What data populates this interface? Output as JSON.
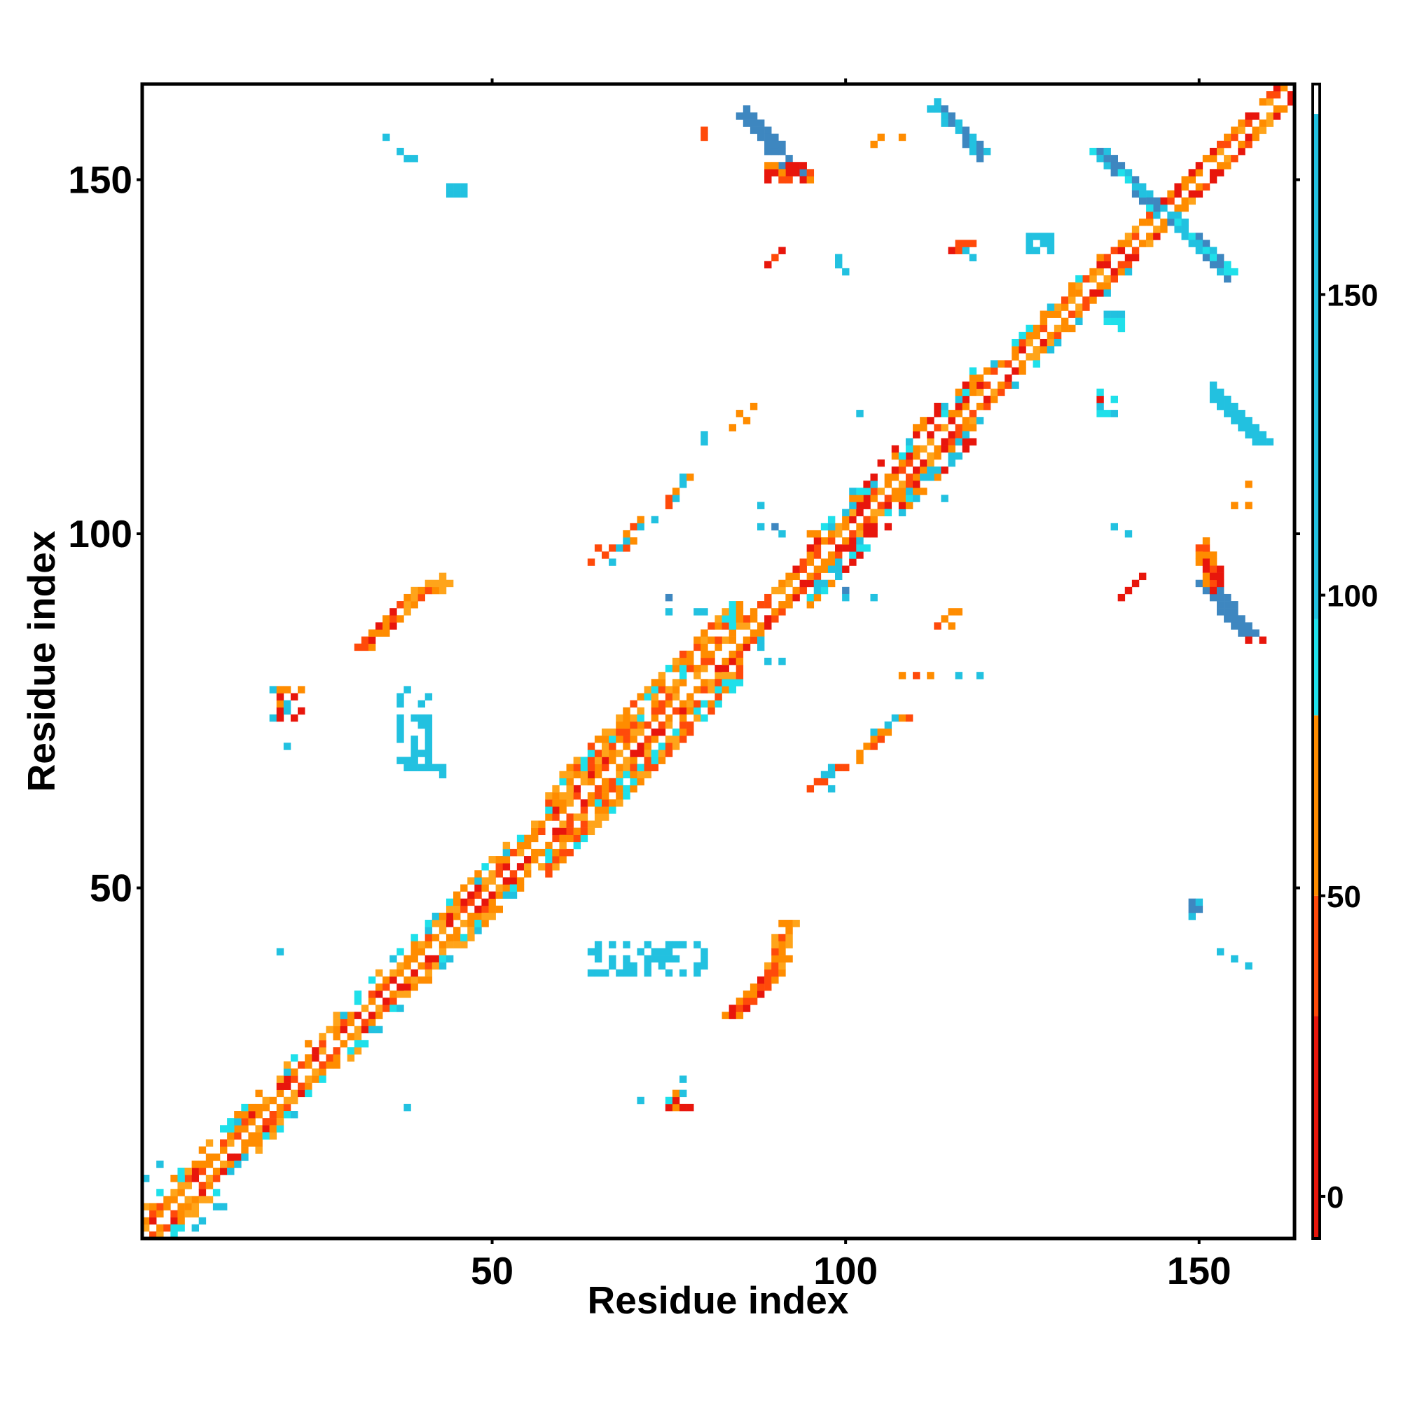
{
  "chart_data": {
    "type": "heatmap",
    "title": "",
    "xlabel": "Residue index",
    "ylabel": "Residue index",
    "xlim": [
      1,
      163
    ],
    "ylim": [
      1,
      163
    ],
    "x_ticks": [
      50,
      100,
      150
    ],
    "y_ticks": [
      50,
      100,
      150
    ],
    "grid": false,
    "colorbar": {
      "range": [
        -7,
        185
      ],
      "ticks": [
        0,
        50,
        100,
        150
      ],
      "bands": [
        {
          "from": -7,
          "to": 30,
          "color": "#e8160c"
        },
        {
          "from": 30,
          "to": 50,
          "color": "#ff4a0a"
        },
        {
          "from": 50,
          "to": 80,
          "color": "#ff8c00"
        },
        {
          "from": 80,
          "to": 96,
          "color": "#1fe0ea"
        },
        {
          "from": 96,
          "to": 180,
          "color": "#22c1e0"
        },
        {
          "from": 180,
          "to": 185,
          "color": "#ffffff"
        }
      ]
    },
    "palette": {
      "red": "#e8160c",
      "orange_red": "#ff4a0a",
      "orange": "#ff8c00",
      "light_orange": "#ffa41a",
      "cyan": "#1fe0ea",
      "light_blue": "#22c1e0",
      "steel_blue": "#3e87c0"
    },
    "regions": [
      {
        "kind": "diag",
        "from": 1,
        "to": 163,
        "offsets": [
          -2,
          -1,
          1,
          2
        ],
        "colors": [
          "red",
          "orange_red",
          "orange",
          "light_orange",
          "orange"
        ],
        "density": 0.9
      },
      {
        "kind": "diag",
        "from": 1,
        "to": 58,
        "offsets": [
          -4,
          -3,
          3,
          4
        ],
        "colors": [
          "orange",
          "cyan",
          "light_blue",
          "light_orange"
        ],
        "density": 0.55
      },
      {
        "kind": "diag",
        "from": 58,
        "to": 85,
        "offsets": [
          -6,
          -5,
          -4,
          -3,
          3,
          4,
          5,
          6
        ],
        "colors": [
          "orange",
          "orange_red",
          "cyan",
          "light_orange"
        ],
        "density": 0.8
      },
      {
        "kind": "diag",
        "from": 95,
        "to": 118,
        "offsets": [
          -5,
          -4,
          -3,
          3,
          4,
          5
        ],
        "colors": [
          "orange",
          "cyan",
          "red",
          "light_blue"
        ],
        "density": 0.6
      },
      {
        "kind": "diag",
        "from": 118,
        "to": 140,
        "offsets": [
          -3,
          3
        ],
        "colors": [
          "cyan",
          "orange",
          "light_blue"
        ],
        "density": 0.6
      },
      {
        "kind": "band",
        "from": [
          32,
          84
        ],
        "to": [
          38,
          90
        ],
        "width": 3,
        "colors": [
          "red",
          "orange_red",
          "orange"
        ],
        "density": 0.9
      },
      {
        "kind": "band",
        "from": [
          38,
          90
        ],
        "to": [
          44,
          94
        ],
        "width": 2,
        "colors": [
          "orange_red",
          "orange",
          "light_orange"
        ],
        "density": 0.8
      },
      {
        "kind": "band",
        "from": [
          84,
          32
        ],
        "to": [
          90,
          38
        ],
        "width": 3,
        "colors": [
          "red",
          "orange_red",
          "orange"
        ],
        "density": 0.9
      },
      {
        "kind": "band",
        "from": [
          90,
          38
        ],
        "to": [
          92,
          45
        ],
        "width": 2,
        "colors": [
          "orange_red",
          "orange",
          "light_orange"
        ],
        "density": 0.8
      },
      {
        "kind": "band",
        "from": [
          86,
          159
        ],
        "to": [
          93,
          151
        ],
        "width": 3,
        "colors": [
          "steel_blue"
        ],
        "density": 0.95
      },
      {
        "kind": "band",
        "from": [
          113,
          160
        ],
        "to": [
          119,
          154
        ],
        "width": 3,
        "colors": [
          "light_blue",
          "steel_blue"
        ],
        "density": 0.9
      },
      {
        "kind": "band",
        "from": [
          136,
          154
        ],
        "to": [
          154,
          137
        ],
        "width": 3,
        "colors": [
          "cyan",
          "light_blue",
          "steel_blue"
        ],
        "density": 0.9
      },
      {
        "kind": "band",
        "from": [
          151,
          93
        ],
        "to": [
          157,
          86
        ],
        "width": 3,
        "colors": [
          "steel_blue"
        ],
        "density": 0.95
      },
      {
        "kind": "band",
        "from": [
          152,
          120
        ],
        "to": [
          159,
          113
        ],
        "width": 3,
        "colors": [
          "light_blue"
        ],
        "density": 0.9
      },
      {
        "kind": "band",
        "from": [
          151,
          98
        ],
        "to": [
          152,
          93
        ],
        "width": 2,
        "colors": [
          "red",
          "orange_red",
          "orange"
        ],
        "density": 0.8
      },
      {
        "kind": "band",
        "from": [
          67,
          97
        ],
        "to": [
          78,
          108
        ],
        "width": 2,
        "colors": [
          "orange",
          "orange_red",
          "light_blue"
        ],
        "density": 0.35
      },
      {
        "kind": "band",
        "from": [
          96,
          64
        ],
        "to": [
          108,
          74
        ],
        "width": 2,
        "colors": [
          "orange",
          "orange_red",
          "light_blue"
        ],
        "density": 0.35
      },
      {
        "kind": "blob",
        "x": [
          37,
          42
        ],
        "y": [
          67,
          78
        ],
        "colors": [
          "light_blue"
        ],
        "density": 0.5
      },
      {
        "kind": "blob",
        "x": [
          64,
          80
        ],
        "y": [
          38,
          42
        ],
        "colors": [
          "light_blue"
        ],
        "density": 0.45
      },
      {
        "kind": "blob",
        "x": [
          19,
          23
        ],
        "y": [
          74,
          78
        ],
        "colors": [
          "light_blue",
          "red",
          "orange"
        ],
        "density": 0.6
      },
      {
        "kind": "blob",
        "x": [
          44,
          46
        ],
        "y": [
          148,
          149
        ],
        "colors": [
          "light_blue"
        ],
        "density": 0.8
      },
      {
        "kind": "blob",
        "x": [
          75,
          78
        ],
        "y": [
          19,
          21
        ],
        "colors": [
          "cyan",
          "light_blue",
          "red",
          "orange"
        ],
        "density": 0.7
      },
      {
        "kind": "blob",
        "x": [
          115,
          118
        ],
        "y": [
          139,
          141
        ],
        "colors": [
          "red",
          "orange_red",
          "light_blue"
        ],
        "density": 0.7
      },
      {
        "kind": "blob",
        "x": [
          126,
          129
        ],
        "y": [
          140,
          142
        ],
        "colors": [
          "light_blue"
        ],
        "density": 0.9
      },
      {
        "kind": "blob",
        "x": [
          137,
          139
        ],
        "y": [
          129,
          131
        ],
        "colors": [
          "light_blue",
          "cyan"
        ],
        "density": 0.9
      },
      {
        "kind": "blob",
        "x": [
          136,
          138
        ],
        "y": [
          117,
          120
        ],
        "colors": [
          "light_blue",
          "cyan",
          "red"
        ],
        "density": 0.8
      },
      {
        "kind": "blob",
        "x": [
          149,
          150
        ],
        "y": [
          46,
          48
        ],
        "colors": [
          "light_blue",
          "steel_blue"
        ],
        "density": 0.8
      },
      {
        "kind": "blob",
        "x": [
          89,
          95
        ],
        "y": [
          150,
          152
        ],
        "colors": [
          "red",
          "orange",
          "orange_red"
        ],
        "density": 0.7
      }
    ],
    "points": [
      {
        "x": 35,
        "y": 156,
        "c": "light_blue"
      },
      {
        "x": 37,
        "y": 154,
        "c": "light_blue"
      },
      {
        "x": 38,
        "y": 153,
        "c": "light_blue"
      },
      {
        "x": 39,
        "y": 153,
        "c": "light_blue"
      },
      {
        "x": 80,
        "y": 157,
        "c": "orange_red"
      },
      {
        "x": 80,
        "y": 156,
        "c": "orange_red"
      },
      {
        "x": 105,
        "y": 156,
        "c": "orange"
      },
      {
        "x": 108,
        "y": 156,
        "c": "orange"
      },
      {
        "x": 104,
        "y": 155,
        "c": "orange"
      },
      {
        "x": 89,
        "y": 138,
        "c": "red"
      },
      {
        "x": 90,
        "y": 139,
        "c": "orange_red"
      },
      {
        "x": 91,
        "y": 140,
        "c": "red"
      },
      {
        "x": 99,
        "y": 139,
        "c": "light_blue"
      },
      {
        "x": 99,
        "y": 138,
        "c": "light_blue"
      },
      {
        "x": 100,
        "y": 137,
        "c": "light_blue"
      },
      {
        "x": 85,
        "y": 117,
        "c": "orange"
      },
      {
        "x": 86,
        "y": 116,
        "c": "orange"
      },
      {
        "x": 87,
        "y": 118,
        "c": "orange"
      },
      {
        "x": 84,
        "y": 115,
        "c": "orange"
      },
      {
        "x": 80,
        "y": 114,
        "c": "light_blue"
      },
      {
        "x": 80,
        "y": 113,
        "c": "light_blue"
      },
      {
        "x": 102,
        "y": 117,
        "c": "light_blue"
      },
      {
        "x": 112,
        "y": 108,
        "c": "light_blue"
      },
      {
        "x": 114,
        "y": 105,
        "c": "light_blue"
      },
      {
        "x": 88,
        "y": 104,
        "c": "light_blue"
      },
      {
        "x": 88,
        "y": 101,
        "c": "light_blue"
      },
      {
        "x": 90,
        "y": 101,
        "c": "steel_blue"
      },
      {
        "x": 91,
        "y": 100,
        "c": "light_blue"
      },
      {
        "x": 100,
        "y": 92,
        "c": "steel_blue"
      },
      {
        "x": 100,
        "y": 91,
        "c": "light_blue"
      },
      {
        "x": 104,
        "y": 91,
        "c": "light_blue"
      },
      {
        "x": 75,
        "y": 91,
        "c": "steel_blue"
      },
      {
        "x": 75,
        "y": 89,
        "c": "light_blue"
      },
      {
        "x": 79,
        "y": 89,
        "c": "light_blue"
      },
      {
        "x": 80,
        "y": 89,
        "c": "light_blue"
      },
      {
        "x": 88,
        "y": 85,
        "c": "light_blue"
      },
      {
        "x": 88,
        "y": 84,
        "c": "light_blue"
      },
      {
        "x": 89,
        "y": 82,
        "c": "light_blue"
      },
      {
        "x": 91,
        "y": 82,
        "c": "light_blue"
      },
      {
        "x": 115,
        "y": 89,
        "c": "orange"
      },
      {
        "x": 116,
        "y": 89,
        "c": "orange"
      },
      {
        "x": 114,
        "y": 88,
        "c": "orange"
      },
      {
        "x": 113,
        "y": 87,
        "c": "orange_red"
      },
      {
        "x": 115,
        "y": 87,
        "c": "orange"
      },
      {
        "x": 138,
        "y": 101,
        "c": "light_blue"
      },
      {
        "x": 140,
        "y": 100,
        "c": "light_blue"
      },
      {
        "x": 139,
        "y": 91,
        "c": "red"
      },
      {
        "x": 140,
        "y": 92,
        "c": "red"
      },
      {
        "x": 141,
        "y": 93,
        "c": "red"
      },
      {
        "x": 142,
        "y": 94,
        "c": "red"
      },
      {
        "x": 157,
        "y": 107,
        "c": "orange"
      },
      {
        "x": 155,
        "y": 104,
        "c": "orange"
      },
      {
        "x": 157,
        "y": 104,
        "c": "orange"
      },
      {
        "x": 157,
        "y": 85,
        "c": "red"
      },
      {
        "x": 159,
        "y": 85,
        "c": "red"
      },
      {
        "x": 21,
        "y": 70,
        "c": "light_blue"
      },
      {
        "x": 20,
        "y": 41,
        "c": "light_blue"
      },
      {
        "x": 38,
        "y": 19,
        "c": "light_blue"
      },
      {
        "x": 43,
        "y": 66,
        "c": "light_blue"
      },
      {
        "x": 43,
        "y": 67,
        "c": "light_blue"
      },
      {
        "x": 153,
        "y": 41,
        "c": "light_blue"
      },
      {
        "x": 155,
        "y": 40,
        "c": "light_blue"
      },
      {
        "x": 157,
        "y": 39,
        "c": "light_blue"
      },
      {
        "x": 71,
        "y": 20,
        "c": "light_blue"
      },
      {
        "x": 77,
        "y": 23,
        "c": "light_blue"
      },
      {
        "x": 108,
        "y": 80,
        "c": "orange"
      },
      {
        "x": 110,
        "y": 80,
        "c": "orange_red"
      },
      {
        "x": 112,
        "y": 80,
        "c": "orange"
      },
      {
        "x": 116,
        "y": 80,
        "c": "light_blue"
      },
      {
        "x": 119,
        "y": 80,
        "c": "light_blue"
      },
      {
        "x": 96,
        "y": 65,
        "c": "orange_red"
      },
      {
        "x": 98,
        "y": 64,
        "c": "light_blue"
      },
      {
        "x": 65,
        "y": 98,
        "c": "orange_red"
      },
      {
        "x": 64,
        "y": 96,
        "c": "orange_red"
      },
      {
        "x": 1,
        "y": 9,
        "c": "light_blue"
      },
      {
        "x": 3,
        "y": 11,
        "c": "light_blue"
      },
      {
        "x": 11,
        "y": 5,
        "c": "light_blue"
      },
      {
        "x": 12,
        "y": 5,
        "c": "light_blue"
      },
      {
        "x": 9,
        "y": 3,
        "c": "light_blue"
      },
      {
        "x": 8,
        "y": 2,
        "c": "light_blue"
      }
    ]
  }
}
